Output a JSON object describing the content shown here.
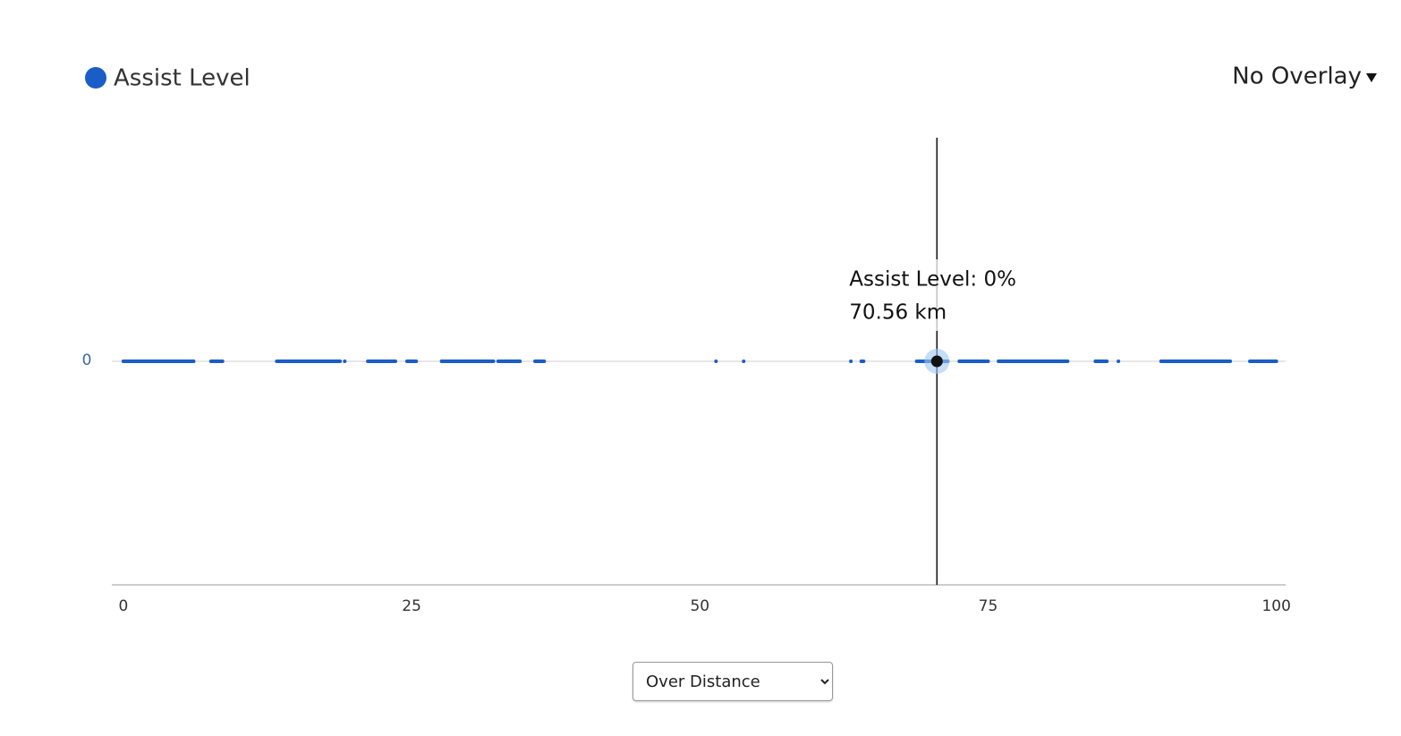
{
  "chart_data": {
    "type": "line",
    "series": [
      {
        "name": "Assist Level",
        "color": "#1a5dc9",
        "x": [
          0,
          6.1,
          7,
          7.6,
          8.6,
          11,
          13.3,
          18.8,
          19,
          19.2,
          20,
          21.2,
          23.6,
          24,
          24.6,
          25.4,
          26,
          27.6,
          32.1,
          32.3,
          32.5,
          34.4,
          35,
          35.7,
          36.5,
          44,
          51.4,
          52,
          53.8,
          58,
          63.1,
          63.5,
          64,
          64.2,
          66,
          68.8,
          70.56,
          71.5,
          72,
          72.5,
          75,
          75.5,
          75.9,
          81.9,
          83,
          84.3,
          85.3,
          85.8,
          86.3,
          88,
          90,
          96,
          97,
          97.7,
          100
        ],
        "values": [
          0,
          0,
          null,
          0,
          0,
          null,
          0,
          0,
          null,
          0,
          null,
          0,
          0,
          null,
          0,
          0,
          null,
          0,
          0,
          null,
          0,
          0,
          null,
          0,
          0,
          null,
          0,
          null,
          0,
          null,
          0,
          null,
          0,
          0,
          null,
          0,
          0,
          0,
          null,
          0,
          0,
          null,
          0,
          0,
          null,
          0,
          0,
          null,
          0,
          null,
          0,
          0,
          null,
          0,
          0
        ]
      }
    ],
    "xlim": [
      -1,
      100.8
    ],
    "xticks": [
      0,
      25,
      50,
      75,
      100
    ],
    "ylim": [
      -1,
      1
    ],
    "yticks": [
      0
    ],
    "cursor_x": 70.56,
    "tooltip": {
      "series_line": "Assist Level: 0%",
      "x_line": "70.56 km"
    }
  },
  "controls": {
    "overlay": "No Overlay",
    "mode_select": "Over Distance"
  }
}
